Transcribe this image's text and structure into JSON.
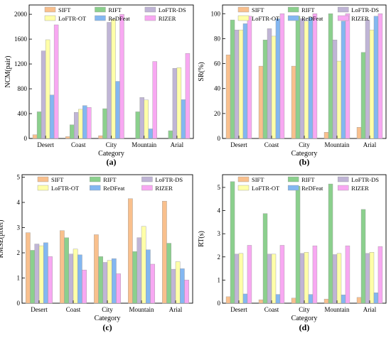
{
  "series_colors": [
    "#F9C08D",
    "#8BD08D",
    "#C0B5D6",
    "#FFFFA8",
    "#83B7F1",
    "#F8A8F2"
  ],
  "chart_data": [
    {
      "type": "bar",
      "panel_label": "(a)",
      "categories": [
        "Desert",
        "Coast",
        "City",
        "Mountain",
        "Arial"
      ],
      "xlabel": "Category",
      "ylabel": "NCM(pair)",
      "ylim": [
        0,
        2150
      ],
      "yticks": [
        0,
        400,
        800,
        1200,
        1600,
        2000
      ],
      "legend": "top",
      "grid": false,
      "series": [
        {
          "name": "SIFT",
          "values": [
            60,
            30,
            45,
            0,
            0
          ]
        },
        {
          "name": "RIFT",
          "values": [
            430,
            220,
            480,
            430,
            125
          ]
        },
        {
          "name": "LoFTR-DS",
          "values": [
            1410,
            420,
            1870,
            660,
            1130
          ]
        },
        {
          "name": "LoFTR-OT",
          "values": [
            1590,
            470,
            1920,
            620,
            1140
          ]
        },
        {
          "name": "ReDFeat",
          "values": [
            700,
            530,
            920,
            155,
            625
          ]
        },
        {
          "name": "RIZER",
          "values": [
            1830,
            500,
            2000,
            1240,
            1370
          ]
        }
      ]
    },
    {
      "type": "bar",
      "panel_label": "(b)",
      "categories": [
        "Desert",
        "Coast",
        "City",
        "Mountain",
        "Arial"
      ],
      "xlabel": "Category",
      "ylabel": "SR(%)",
      "ylim": [
        0,
        107
      ],
      "yticks": [
        0,
        20,
        40,
        60,
        80,
        100
      ],
      "legend": "top",
      "grid": false,
      "series": [
        {
          "name": "SIFT",
          "values": [
            67,
            58,
            58,
            5,
            9
          ]
        },
        {
          "name": "RIFT",
          "values": [
            95,
            79,
            98,
            100,
            69
          ]
        },
        {
          "name": "LoFTR-DS",
          "values": [
            87,
            88,
            96,
            79,
            95
          ]
        },
        {
          "name": "LoFTR-OT",
          "values": [
            87,
            82,
            94,
            62,
            87
          ]
        },
        {
          "name": "ReDFeat",
          "values": [
            92,
            96,
            97,
            94,
            98
          ]
        },
        {
          "name": "RIZER",
          "values": [
            98,
            100,
            100,
            100,
            100
          ]
        }
      ]
    },
    {
      "type": "bar",
      "panel_label": "(c)",
      "categories": [
        "Desert",
        "Coast",
        "City",
        "Mountain",
        "Arial"
      ],
      "xlabel": "Category",
      "ylabel": "RMSE(pixel)",
      "ylim": [
        0,
        5.1
      ],
      "yticks": [
        0,
        1,
        2,
        3,
        4,
        5
      ],
      "legend": "top",
      "grid": false,
      "series": [
        {
          "name": "SIFT",
          "values": [
            2.8,
            2.88,
            2.72,
            4.15,
            4.05
          ]
        },
        {
          "name": "RIFT",
          "values": [
            2.1,
            2.6,
            1.85,
            2.05,
            2.38
          ]
        },
        {
          "name": "LoFTR-DS",
          "values": [
            2.35,
            1.95,
            1.62,
            2.6,
            1.35
          ]
        },
        {
          "name": "LoFTR-OT",
          "values": [
            2.28,
            2.15,
            1.7,
            3.05,
            1.65
          ]
        },
        {
          "name": "ReDFeat",
          "values": [
            2.4,
            1.92,
            1.77,
            2.12,
            1.37
          ]
        },
        {
          "name": "RIZER",
          "values": [
            1.85,
            1.32,
            1.17,
            1.55,
            0.92
          ]
        }
      ]
    },
    {
      "type": "bar",
      "panel_label": "(d)",
      "categories": [
        "Desert",
        "Coast",
        "City",
        "Mountain",
        "Arial"
      ],
      "xlabel": "Category",
      "ylabel": "RT(s)",
      "ylim": [
        0,
        5.55
      ],
      "yticks": [
        0,
        1,
        2,
        3,
        4,
        5
      ],
      "legend": "top",
      "grid": false,
      "series": [
        {
          "name": "SIFT",
          "values": [
            0.28,
            0.15,
            0.22,
            0.18,
            0.25
          ]
        },
        {
          "name": "RIFT",
          "values": [
            5.25,
            3.87,
            5.05,
            5.15,
            4.05
          ]
        },
        {
          "name": "LoFTR-DS",
          "values": [
            2.12,
            2.12,
            2.15,
            2.1,
            2.15
          ]
        },
        {
          "name": "LoFTR-OT",
          "values": [
            2.15,
            2.12,
            2.2,
            2.15,
            2.2
          ]
        },
        {
          "name": "ReDFeat",
          "values": [
            0.4,
            0.38,
            0.38,
            0.36,
            0.45
          ]
        },
        {
          "name": "RIZER",
          "values": [
            2.5,
            2.5,
            2.48,
            2.48,
            2.45
          ]
        }
      ]
    }
  ]
}
